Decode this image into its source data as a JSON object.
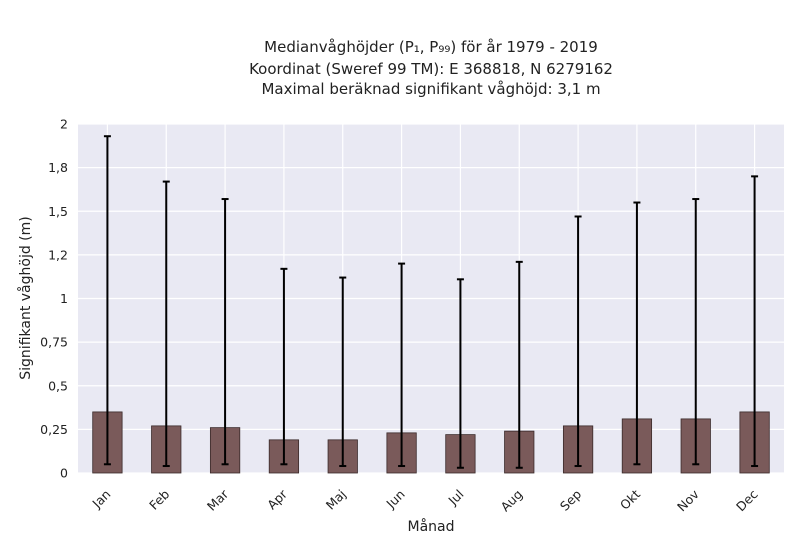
{
  "chart_data": {
    "type": "bar",
    "title_lines": [
      "Medianvåghöjder (P₁, P₉₉) för år 1979 - 2019",
      "Koordinat (Sweref 99 TM): E 368818, N 6279162",
      "Maximal beräknad signifikant våghöjd: 3,1 m"
    ],
    "xlabel": "Månad",
    "ylabel": "Signifikant våghöjd (m)",
    "categories": [
      "Jan",
      "Feb",
      "Mar",
      "Apr",
      "Maj",
      "Jun",
      "Jul",
      "Aug",
      "Sep",
      "Okt",
      "Nov",
      "Dec"
    ],
    "values": [
      0.35,
      0.27,
      0.26,
      0.19,
      0.19,
      0.23,
      0.22,
      0.24,
      0.27,
      0.31,
      0.31,
      0.35
    ],
    "error_low": [
      0.05,
      0.04,
      0.05,
      0.05,
      0.04,
      0.04,
      0.03,
      0.03,
      0.04,
      0.05,
      0.05,
      0.04
    ],
    "error_high": [
      1.93,
      1.67,
      1.57,
      1.17,
      1.12,
      1.2,
      1.11,
      1.21,
      1.47,
      1.55,
      1.57,
      1.7
    ],
    "ylim": [
      0,
      2
    ],
    "yticks": [
      0,
      0.25,
      0.5,
      0.75,
      1,
      1.25,
      1.5,
      1.75,
      2
    ],
    "ytick_labels": [
      "0",
      "0,25",
      "0,5",
      "0,75",
      "1",
      "1,2",
      "1,5",
      "1,8",
      "2"
    ],
    "grid": true,
    "colors": {
      "bar": "#7a5a5a",
      "bar_edge": "#3a2a2a",
      "error": "#000000",
      "plot_bg": "#e9e9f3",
      "grid": "#ffffff"
    }
  }
}
